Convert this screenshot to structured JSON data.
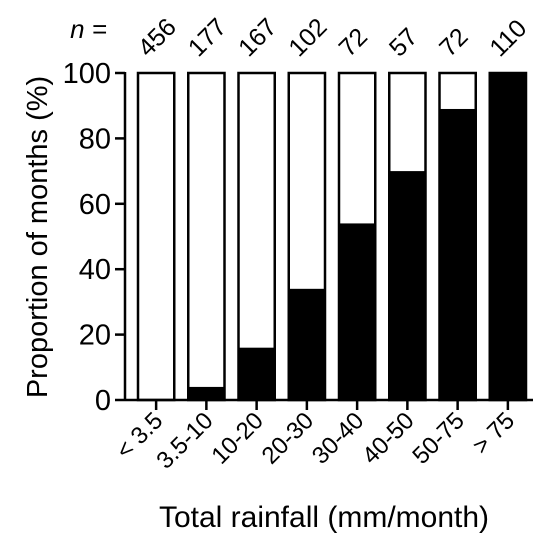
{
  "chart_data": {
    "type": "bar",
    "stacked": true,
    "categories": [
      "< 3.5",
      "3.5-10",
      "10-20",
      "20-30",
      "30-40",
      "40-50",
      "50-75",
      "> 75"
    ],
    "n_label": "n =",
    "n_values": [
      "456",
      "177",
      "167",
      "102",
      "72",
      "57",
      "72",
      "110"
    ],
    "series": [
      {
        "values": [
          0,
          4,
          16,
          34,
          54,
          70,
          89,
          100
        ],
        "color": "#000000"
      },
      {
        "values": [
          100,
          96,
          84,
          66,
          46,
          30,
          11,
          0
        ],
        "color": "#ffffff"
      }
    ],
    "xlabel": "Total rainfall (mm/month)",
    "ylabel": "Proportion of months (%)",
    "ylim": [
      0,
      100
    ],
    "yticks": [
      "0",
      "20",
      "40",
      "60",
      "80",
      "100"
    ],
    "grid": false
  }
}
